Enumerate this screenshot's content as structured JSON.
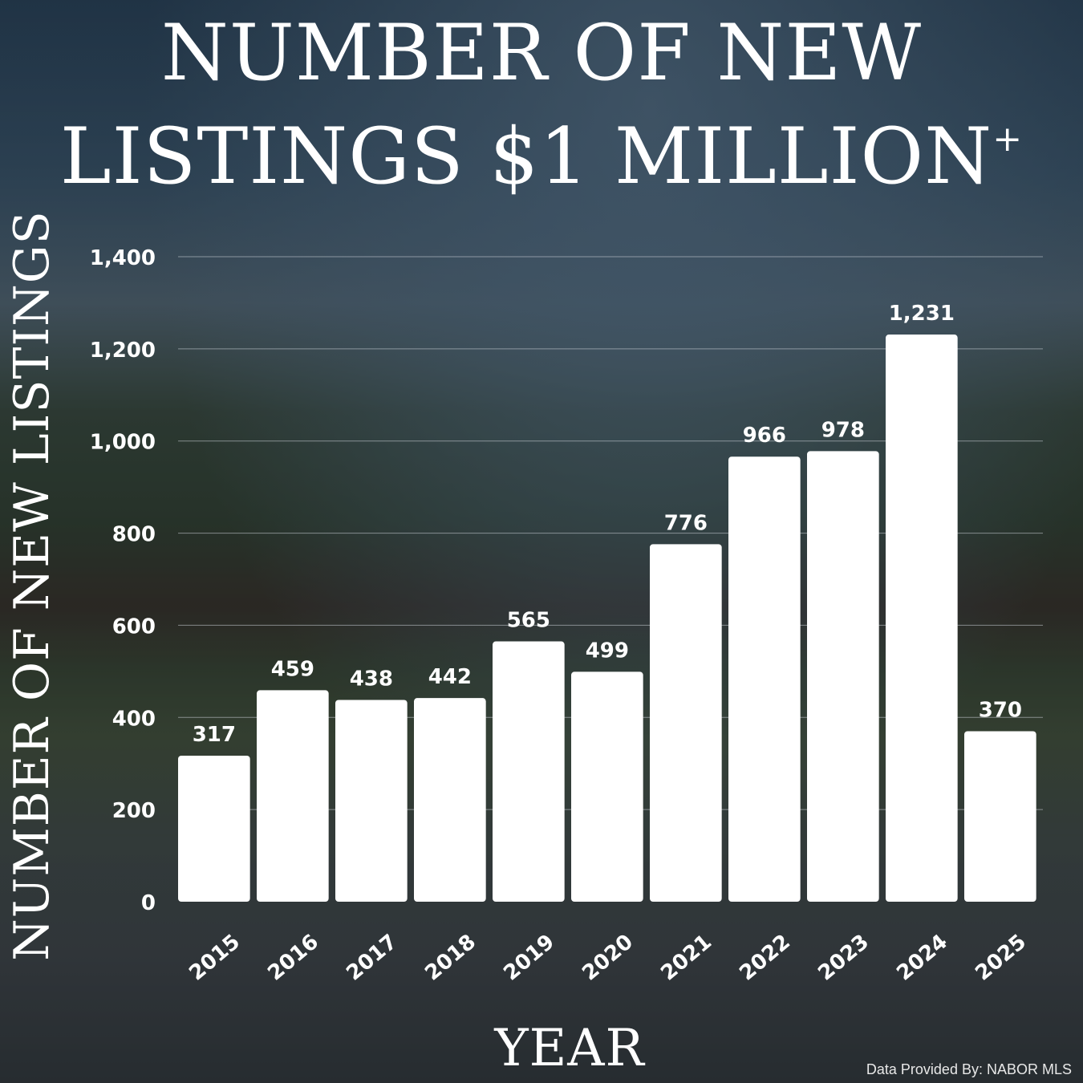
{
  "title_line1": "NUMBER OF NEW",
  "title_line2": "LISTINGS $1 MILLION",
  "title_suffix": "+",
  "credit": "Data Provided By: NABOR MLS",
  "colors": {
    "bar": "#ffffff",
    "text": "#ffffff",
    "grid": "#cfd6dc"
  },
  "chart_data": {
    "type": "bar",
    "title": "NUMBER OF NEW LISTINGS $1 MILLION+",
    "xlabel": "YEAR",
    "ylabel": "NUMBER OF NEW LISTINGS",
    "categories": [
      "2015",
      "2016",
      "2017",
      "2018",
      "2019",
      "2020",
      "2021",
      "2022",
      "2023",
      "2024",
      "2025"
    ],
    "values": [
      317,
      459,
      438,
      442,
      565,
      499,
      776,
      966,
      978,
      1231,
      370
    ],
    "value_labels": [
      "317",
      "459",
      "438",
      "442",
      "565",
      "499",
      "776",
      "966",
      "978",
      "1,231",
      "370"
    ],
    "ylim": [
      0,
      1400
    ],
    "yticks": [
      0,
      200,
      400,
      600,
      800,
      1000,
      1200,
      1400
    ],
    "ytick_labels": [
      "0",
      "200",
      "400",
      "600",
      "800",
      "1,000",
      "1,200",
      "1,400"
    ],
    "grid": true,
    "legend": false
  }
}
